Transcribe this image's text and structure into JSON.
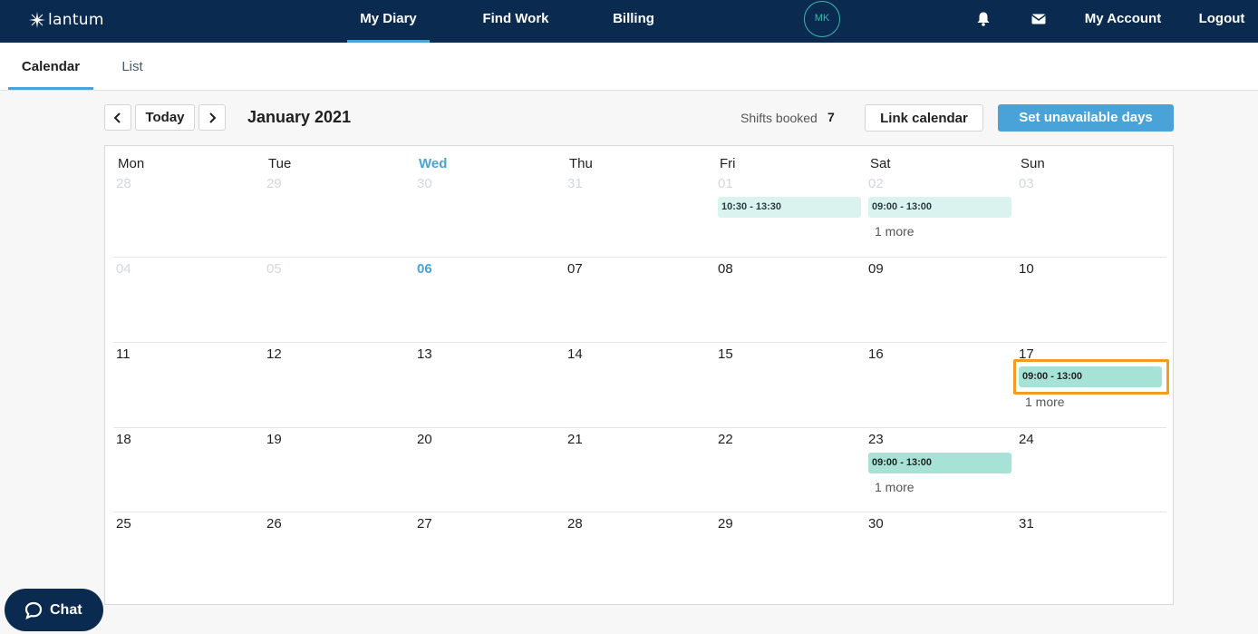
{
  "brand": {
    "name": "lantum"
  },
  "nav": {
    "my_diary": "My Diary",
    "find_work": "Find Work",
    "billing": "Billing",
    "avatar_initials": "MK",
    "my_account": "My Account",
    "logout": "Logout"
  },
  "tabs": {
    "calendar": "Calendar",
    "list": "List"
  },
  "toolbar": {
    "today": "Today",
    "month_label": "January 2021",
    "shifts_booked_label": "Shifts booked",
    "shifts_booked_count": "7",
    "link_calendar": "Link calendar",
    "set_unavailable": "Set unavailable days"
  },
  "calendar": {
    "weekdays": [
      "Mon",
      "Tue",
      "Wed",
      "Thu",
      "Fri",
      "Sat",
      "Sun"
    ],
    "today_weekday": "Wed",
    "weeks": [
      [
        "28",
        "29",
        "30",
        "31",
        "01",
        "02",
        "03"
      ],
      [
        "04",
        "05",
        "06",
        "07",
        "08",
        "09",
        "10"
      ],
      [
        "11",
        "12",
        "13",
        "14",
        "15",
        "16",
        "17"
      ],
      [
        "18",
        "19",
        "20",
        "21",
        "22",
        "23",
        "24"
      ],
      [
        "25",
        "26",
        "27",
        "28",
        "29",
        "30",
        "31"
      ]
    ],
    "shifts": {
      "fri_01": "10:30 - 13:30",
      "sat_02": "09:00 - 13:00",
      "sun_17": "09:00 - 13:00",
      "sat_23": "09:00 - 13:00"
    },
    "more_label": "1 more"
  },
  "chat": {
    "label": "Chat"
  },
  "colors": {
    "nav_bg": "#0b2a50",
    "accent": "#4aa3d8",
    "shift_light": "#dbf3ee",
    "shift_medium": "#a6e3d6",
    "highlight": "#f39c1f"
  }
}
